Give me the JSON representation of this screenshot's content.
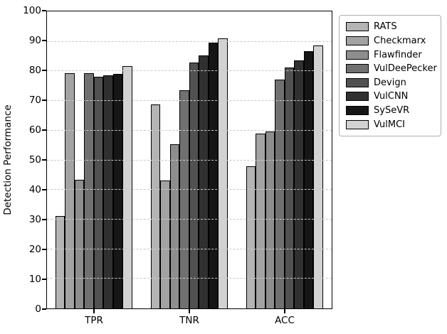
{
  "chart_data": {
    "type": "bar",
    "title": "",
    "xlabel": "",
    "ylabel": "Detection Performance",
    "ylim": [
      0,
      100
    ],
    "yticks": [
      0,
      10,
      20,
      30,
      40,
      50,
      60,
      70,
      80,
      90,
      100
    ],
    "categories": [
      "TPR",
      "TNR",
      "ACC"
    ],
    "series": [
      {
        "name": "RATS",
        "color": "#b4b4b4",
        "values": [
          31.0,
          68.6,
          47.8
        ]
      },
      {
        "name": "Checkmarx",
        "color": "#a3a3a3",
        "values": [
          79.2,
          43.0,
          58.8
        ]
      },
      {
        "name": "Flawfinder",
        "color": "#8e8e8e",
        "values": [
          43.2,
          55.2,
          59.5
        ]
      },
      {
        "name": "VulDeePecker",
        "color": "#707070",
        "values": [
          79.2,
          73.5,
          77.0
        ]
      },
      {
        "name": "Devign",
        "color": "#515151",
        "values": [
          78.1,
          82.8,
          81.0
        ]
      },
      {
        "name": "VulCNN",
        "color": "#303030",
        "values": [
          78.4,
          85.2,
          83.5
        ]
      },
      {
        "name": "SySeVR",
        "color": "#161616",
        "values": [
          78.9,
          89.5,
          86.6
        ]
      },
      {
        "name": "VulMCI",
        "color": "#d2d2d2",
        "values": [
          81.5,
          91.0,
          88.5
        ]
      }
    ],
    "legend_position": "upper right outside",
    "grid": "horizontal dashed, drawn over bars",
    "grid_color": "#c9c9c9",
    "bar_edge_color": "#000000",
    "background_color": "#ffffff"
  }
}
